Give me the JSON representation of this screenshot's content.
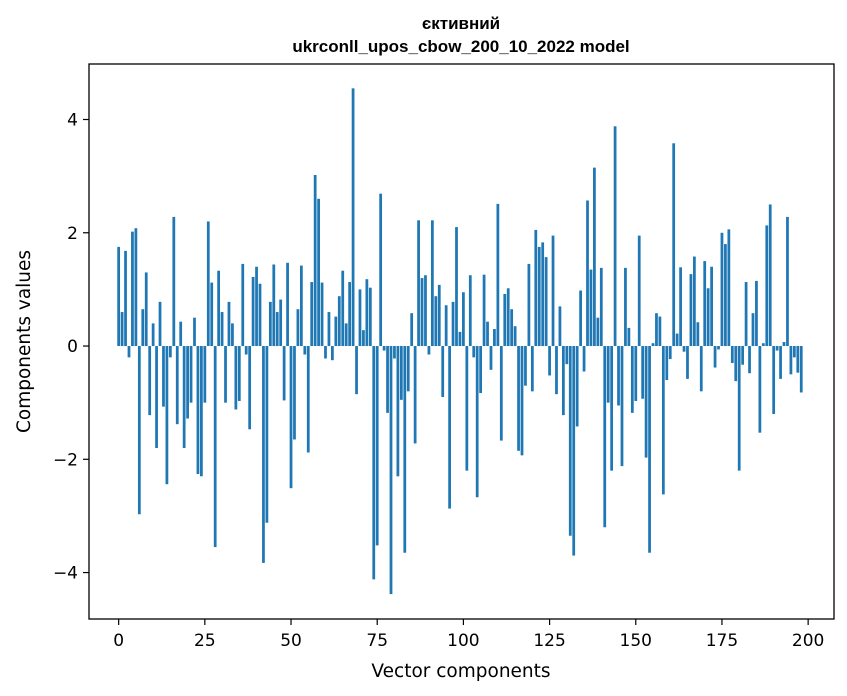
{
  "chart_data": {
    "type": "bar",
    "title": [
      "єктивний",
      "ukrconll_upos_cbow_200_10_2022 model"
    ],
    "xlabel": "Vector components",
    "ylabel": "Components values",
    "xlim": [
      -8.6,
      207.5
    ],
    "ylim": [
      -4.82,
      4.98
    ],
    "xticks": [
      0,
      25,
      50,
      75,
      100,
      125,
      150,
      175,
      200
    ],
    "yticks": [
      -4,
      -2,
      0,
      2,
      4
    ],
    "ytick_labels": [
      "−4",
      "−2",
      "0",
      "2",
      "4"
    ],
    "grid": false,
    "bar_color": "#1f77b4",
    "x_start": 0,
    "values": [
      1.75,
      0.6,
      1.68,
      -0.2,
      2.02,
      2.08,
      -2.97,
      0.65,
      1.3,
      -1.22,
      0.4,
      -1.8,
      0.78,
      -1.07,
      -2.44,
      -0.2,
      2.28,
      -1.38,
      0.43,
      -1.8,
      -1.28,
      -1.0,
      0.5,
      -2.26,
      -2.3,
      -1.0,
      2.2,
      1.12,
      -3.55,
      1.33,
      0.6,
      -1.0,
      0.78,
      0.4,
      -1.12,
      -0.97,
      1.45,
      -0.15,
      -1.47,
      1.22,
      1.4,
      1.1,
      -3.83,
      -3.12,
      0.78,
      1.44,
      0.6,
      0.82,
      -0.96,
      1.47,
      -2.51,
      -1.65,
      0.65,
      1.42,
      -0.15,
      -1.88,
      1.13,
      3.02,
      2.6,
      1.12,
      -0.22,
      0.6,
      -0.25,
      0.52,
      0.88,
      1.33,
      0.4,
      1.13,
      4.55,
      -0.85,
      1.0,
      0.28,
      1.18,
      1.03,
      -4.12,
      -3.52,
      2.69,
      -0.08,
      -1.18,
      -4.38,
      -0.22,
      -2.3,
      -0.95,
      -3.65,
      -0.8,
      0.58,
      -1.72,
      2.22,
      1.2,
      1.25,
      -0.15,
      2.22,
      0.88,
      1.08,
      -0.9,
      0.72,
      -2.87,
      0.78,
      2.1,
      0.25,
      0.95,
      -2.2,
      1.25,
      -0.2,
      -2.67,
      -0.83,
      1.26,
      0.43,
      -0.42,
      0.3,
      2.51,
      -1.67,
      0.92,
      1.02,
      0.65,
      0.35,
      -1.85,
      -1.93,
      -0.7,
      1.45,
      -0.8,
      2.05,
      1.75,
      1.83,
      1.57,
      -0.52,
      1.95,
      -0.85,
      0.7,
      -1.22,
      -0.32,
      -3.35,
      -3.7,
      -1.42,
      0.98,
      -0.45,
      2.57,
      1.35,
      3.15,
      0.5,
      1.38,
      -3.2,
      -1.0,
      -2.2,
      3.88,
      -1.05,
      -2.12,
      1.38,
      0.32,
      -1.18,
      -0.97,
      1.95,
      -0.93,
      -1.97,
      -3.65,
      0.05,
      0.58,
      0.52,
      -2.62,
      -0.6,
      -0.23,
      3.58,
      0.22,
      1.39,
      -0.1,
      -0.58,
      1.27,
      1.58,
      0.42,
      -0.8,
      1.5,
      1.02,
      1.4,
      -0.38,
      -0.06,
      2.0,
      1.8,
      2.06,
      -0.3,
      -0.62,
      -2.2,
      -0.33,
      1.13,
      -0.48,
      0.58,
      1.15,
      -1.53,
      0.05,
      2.13,
      2.5,
      -1.2,
      -0.08,
      -0.58,
      0.07,
      2.28,
      -0.5,
      -0.2,
      -0.47,
      -0.82
    ]
  }
}
